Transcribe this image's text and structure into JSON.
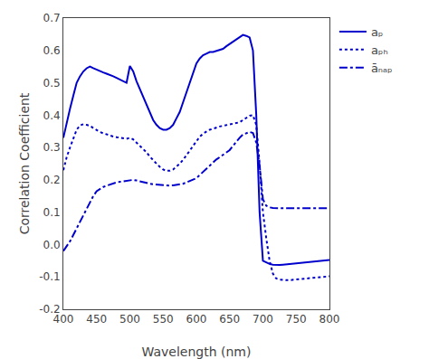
{
  "chart_data": {
    "type": "line",
    "xlabel": "Wavelength (nm)",
    "ylabel": "Correlation Coefficient",
    "x": [
      400,
      405,
      410,
      415,
      420,
      425,
      430,
      435,
      440,
      445,
      450,
      455,
      460,
      465,
      470,
      475,
      480,
      485,
      490,
      495,
      500,
      505,
      510,
      515,
      520,
      525,
      530,
      535,
      540,
      545,
      550,
      555,
      560,
      565,
      570,
      575,
      580,
      585,
      590,
      595,
      600,
      605,
      610,
      615,
      620,
      625,
      630,
      635,
      640,
      645,
      650,
      655,
      660,
      665,
      670,
      675,
      680,
      685,
      690,
      695,
      700,
      705,
      710,
      715,
      720,
      725,
      730,
      735,
      740,
      745,
      750,
      755,
      760,
      765,
      770,
      775,
      780,
      785,
      790,
      795,
      800
    ],
    "series": [
      {
        "name": "aₚ",
        "color": "#0000CD",
        "line_style": "solid",
        "values": [
          0.33,
          0.38,
          0.42,
          0.46,
          0.5,
          0.52,
          0.535,
          0.545,
          0.55,
          0.545,
          0.54,
          0.535,
          0.532,
          0.528,
          0.525,
          0.52,
          0.515,
          0.51,
          0.505,
          0.5,
          0.552,
          0.535,
          0.505,
          0.48,
          0.455,
          0.43,
          0.405,
          0.385,
          0.37,
          0.36,
          0.355,
          0.355,
          0.36,
          0.37,
          0.39,
          0.41,
          0.44,
          0.47,
          0.5,
          0.53,
          0.56,
          0.575,
          0.585,
          0.59,
          0.595,
          0.595,
          0.598,
          0.6,
          0.605,
          0.613,
          0.62,
          0.628,
          0.635,
          0.64,
          0.648,
          0.645,
          0.64,
          0.6,
          0.4,
          0.1,
          -0.05,
          -0.055,
          -0.06,
          -0.062,
          -0.063,
          -0.063,
          -0.062,
          -0.061,
          -0.06,
          -0.059,
          -0.058,
          -0.057,
          -0.056,
          -0.055,
          -0.054,
          -0.053,
          -0.052,
          -0.051,
          -0.05,
          -0.049,
          -0.048
        ]
      },
      {
        "name": "aₚₕ",
        "color": "#0000CD",
        "line_style": "dotted",
        "values": [
          0.23,
          0.27,
          0.3,
          0.33,
          0.355,
          0.368,
          0.372,
          0.37,
          0.367,
          0.36,
          0.353,
          0.348,
          0.344,
          0.34,
          0.337,
          0.334,
          0.332,
          0.33,
          0.328,
          0.327,
          0.33,
          0.325,
          0.315,
          0.305,
          0.295,
          0.285,
          0.272,
          0.26,
          0.25,
          0.24,
          0.232,
          0.228,
          0.228,
          0.232,
          0.24,
          0.25,
          0.262,
          0.275,
          0.29,
          0.305,
          0.32,
          0.333,
          0.343,
          0.35,
          0.355,
          0.358,
          0.362,
          0.365,
          0.367,
          0.369,
          0.37,
          0.372,
          0.375,
          0.378,
          0.385,
          0.392,
          0.398,
          0.4,
          0.37,
          0.25,
          0.1,
          0.02,
          -0.05,
          -0.09,
          -0.105,
          -0.108,
          -0.11,
          -0.11,
          -0.11,
          -0.109,
          -0.108,
          -0.107,
          -0.106,
          -0.105,
          -0.104,
          -0.103,
          -0.102,
          -0.101,
          -0.1,
          -0.099,
          -0.098
        ]
      },
      {
        "name": "āₙₐₚ",
        "color": "#0000CD",
        "line_style": "dashdot",
        "values": [
          -0.02,
          -0.005,
          0.01,
          0.03,
          0.05,
          0.07,
          0.09,
          0.11,
          0.13,
          0.15,
          0.165,
          0.172,
          0.178,
          0.182,
          0.186,
          0.19,
          0.192,
          0.194,
          0.196,
          0.198,
          0.2,
          0.2,
          0.198,
          0.195,
          0.192,
          0.19,
          0.188,
          0.186,
          0.185,
          0.184,
          0.183,
          0.182,
          0.182,
          0.183,
          0.184,
          0.186,
          0.188,
          0.192,
          0.196,
          0.2,
          0.205,
          0.215,
          0.225,
          0.235,
          0.245,
          0.255,
          0.263,
          0.27,
          0.278,
          0.285,
          0.292,
          0.305,
          0.318,
          0.33,
          0.34,
          0.345,
          0.348,
          0.345,
          0.315,
          0.245,
          0.14,
          0.12,
          0.115,
          0.113,
          0.112,
          0.112,
          0.112,
          0.112,
          0.112,
          0.112,
          0.112,
          0.112,
          0.112,
          0.112,
          0.112,
          0.112,
          0.112,
          0.112,
          0.112,
          0.112,
          0.112
        ]
      }
    ],
    "xlim": [
      400,
      800
    ],
    "ylim": [
      -0.2,
      0.7
    ],
    "xticks": [
      400,
      450,
      500,
      550,
      600,
      650,
      700,
      750,
      800
    ],
    "yticks": [
      -0.2,
      -0.1,
      {
        "value": 0,
        "label": "0.0"
      },
      0.1,
      0.2,
      0.3,
      0.4,
      0.5,
      0.6,
      0.7
    ],
    "grid": false,
    "legend": "upper right"
  }
}
